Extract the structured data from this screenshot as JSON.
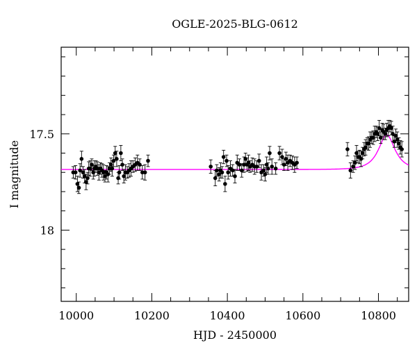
{
  "chart_data": {
    "type": "scatter",
    "title": "OGLE-2025-BLG-0612",
    "xlabel": "HJD - 2450000",
    "ylabel": "I magnitude",
    "xlim": [
      9960,
      10880
    ],
    "ylim": [
      18.37,
      17.05
    ],
    "y_inverted": true,
    "x_ticks": [
      10000,
      10200,
      10400,
      10600,
      10800
    ],
    "x_tick_labels": [
      "10000",
      "10200",
      "10400",
      "10600",
      "10800"
    ],
    "y_ticks": [
      17.5,
      18
    ],
    "y_tick_labels": [
      "17.5",
      "18"
    ],
    "x_minor_step": 50,
    "y_minor_step": 0.1,
    "grid": false,
    "point_color": "#000000",
    "model_color": "#ff00ff",
    "model": {
      "type": "microlensing",
      "baseline": 17.685,
      "t0": 10822,
      "u0": 0.6,
      "tE": 38
    },
    "series": [
      {
        "x": [
          9992,
          9998,
          10003,
          10007,
          10010,
          10014,
          10018,
          10022,
          10026,
          10030,
          10033,
          10037,
          10041,
          10045,
          10048,
          10052,
          10056,
          10060,
          10064,
          10068,
          10072,
          10076,
          10080,
          10084,
          10088,
          10092,
          10095,
          10099,
          10103,
          10107,
          10111,
          10114,
          10118,
          10122,
          10126,
          10130,
          10135,
          10140,
          10145,
          10150,
          10156,
          10162,
          10168,
          10175,
          10182,
          10190,
          10356,
          10368,
          10372,
          10378,
          10382,
          10386,
          10390,
          10394,
          10398,
          10402,
          10408,
          10414,
          10420,
          10426,
          10432,
          10438,
          10444,
          10448,
          10452,
          10456,
          10460,
          10466,
          10472,
          10478,
          10484,
          10490,
          10496,
          10500,
          10504,
          10508,
          10512,
          10518,
          10528,
          10538,
          10545,
          10550,
          10555,
          10560,
          10566,
          10572,
          10578,
          10584,
          10718,
          10726,
          10733,
          10738,
          10742,
          10746,
          10750,
          10754,
          10758,
          10762,
          10766,
          10770,
          10774,
          10778,
          10782,
          10786,
          10790,
          10794,
          10798,
          10802,
          10806,
          10810,
          10814,
          10818,
          10822,
          10826,
          10830,
          10834,
          10838,
          10842,
          10846,
          10850,
          10854,
          10858,
          10862
        ],
        "y": [
          17.7,
          17.7,
          17.76,
          17.78,
          17.69,
          17.63,
          17.7,
          17.72,
          17.75,
          17.73,
          17.68,
          17.68,
          17.66,
          17.7,
          17.68,
          17.67,
          17.68,
          17.7,
          17.68,
          17.69,
          17.7,
          17.72,
          17.7,
          17.71,
          17.68,
          17.66,
          17.68,
          17.64,
          17.6,
          17.63,
          17.73,
          17.7,
          17.6,
          17.66,
          17.72,
          17.7,
          17.7,
          17.69,
          17.68,
          17.67,
          17.66,
          17.65,
          17.66,
          17.7,
          17.7,
          17.64,
          17.67,
          17.73,
          17.69,
          17.71,
          17.69,
          17.7,
          17.62,
          17.76,
          17.64,
          17.7,
          17.68,
          17.69,
          17.72,
          17.65,
          17.66,
          17.69,
          17.66,
          17.63,
          17.66,
          17.65,
          17.67,
          17.66,
          17.67,
          17.67,
          17.64,
          17.7,
          17.69,
          17.71,
          17.66,
          17.68,
          17.6,
          17.67,
          17.68,
          17.6,
          17.62,
          17.66,
          17.63,
          17.65,
          17.64,
          17.65,
          17.66,
          17.65,
          17.58,
          17.69,
          17.67,
          17.65,
          17.6,
          17.62,
          17.62,
          17.63,
          17.6,
          17.58,
          17.57,
          17.55,
          17.55,
          17.53,
          17.52,
          17.52,
          17.5,
          17.49,
          17.5,
          17.47,
          17.52,
          17.48,
          17.49,
          17.5,
          17.48,
          17.47,
          17.46,
          17.47,
          17.5,
          17.54,
          17.51,
          17.53,
          17.55,
          17.57,
          17.58
        ]
      }
    ]
  }
}
